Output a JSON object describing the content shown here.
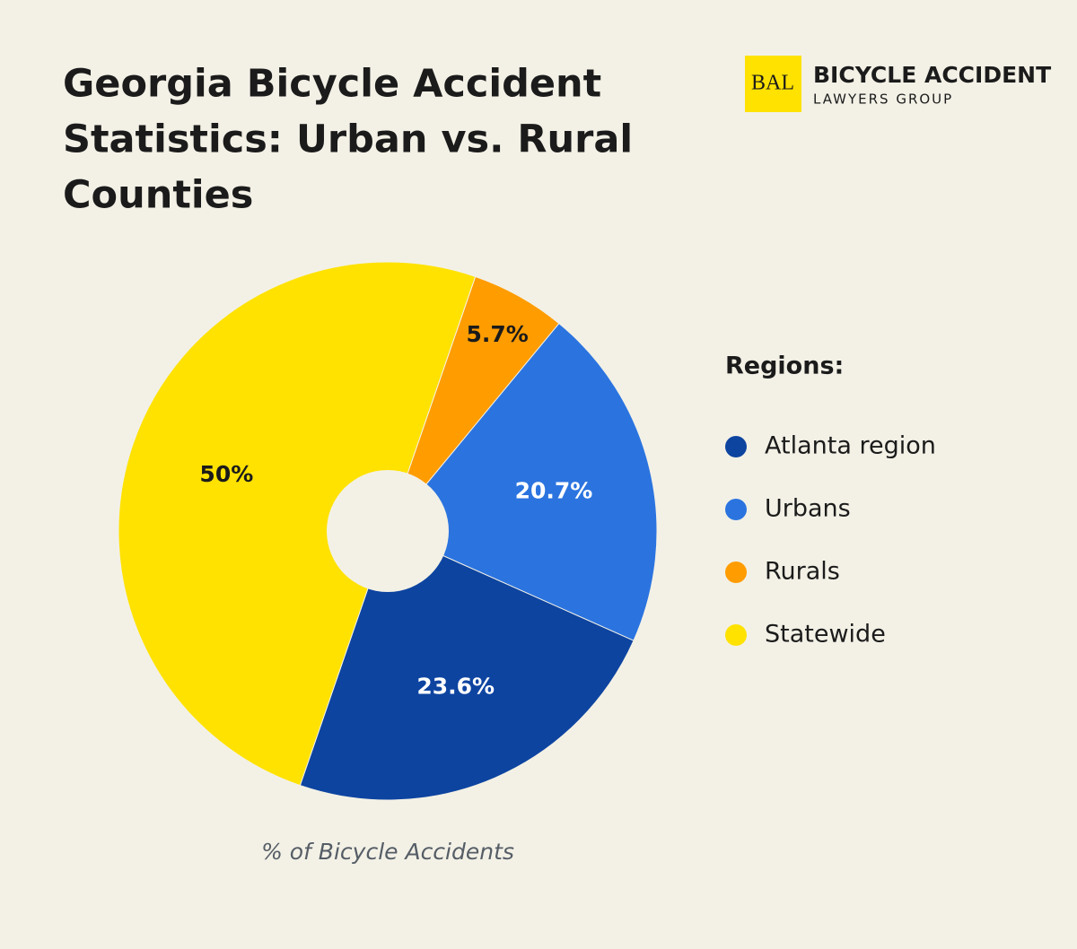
{
  "chart_data": {
    "type": "pie",
    "title": [
      "Georgia Bicycle Accident",
      "Statistics: Urban vs. Rural",
      "Counties"
    ],
    "brand": {
      "mark": "BAL",
      "name": "BICYCLE ACCIDENT",
      "tagline": "LAWYERS GROUP"
    },
    "legend_title": "Regions:",
    "caption": "% of Bicycle Accidents",
    "categories": [
      "Atlanta region",
      "Urbans",
      "Rurals",
      "Statewide"
    ],
    "values": [
      23.6,
      20.7,
      5.7,
      50
    ],
    "value_labels": [
      "23.6%",
      "20.7%",
      "5.7%",
      "50%"
    ],
    "colors": [
      "#0d44a0",
      "#2b74e0",
      "#ff9c00",
      "#ffe200"
    ],
    "donut": true
  }
}
